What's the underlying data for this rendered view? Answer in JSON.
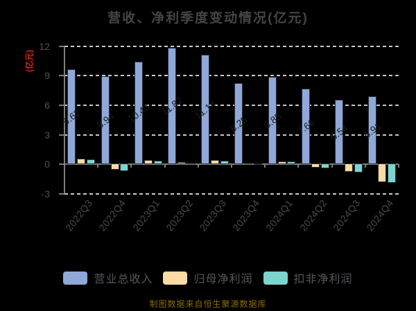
{
  "chart_data": {
    "type": "bar",
    "title": "营收、净利季度变动情况(亿元)",
    "y_axis_name": "(亿元)",
    "categories": [
      "2022Q3",
      "2022Q4",
      "2023Q1",
      "2023Q2",
      "2023Q3",
      "2023Q4",
      "2024Q1",
      "2024Q2",
      "2024Q3",
      "2024Q4"
    ],
    "series": [
      {
        "name": "营业总收入",
        "color": "#8FA8D8",
        "values": [
          9.62,
          8.94,
          10.43,
          11.82,
          11.14,
          8.25,
          8.85,
          7.66,
          6.54,
          6.91
        ],
        "labels": [
          "9.62",
          "8.94",
          "10.43",
          "11.82",
          "11.14",
          "8.25",
          "8.85",
          "7.66",
          "6.54",
          "6.91"
        ],
        "label_color": "#1b1b1b"
      },
      {
        "name": "归母净利润",
        "color": "#FBDBA4",
        "values": [
          0.55,
          -0.6,
          0.45,
          0.2,
          0.42,
          0.16,
          0.32,
          -0.37,
          -0.85,
          -1.85
        ]
      },
      {
        "name": "扣非净利润",
        "color": "#7CD4CD",
        "values": [
          0.48,
          -0.72,
          0.4,
          0.13,
          0.36,
          0.09,
          0.28,
          -0.44,
          -0.92,
          -1.95
        ]
      }
    ],
    "ylim": [
      -3,
      12
    ],
    "yticks": [
      12,
      9,
      6,
      3,
      0,
      -3
    ],
    "grid": "dashed horizontal",
    "legend_position": "bottom",
    "background_color": "#000000",
    "grid_color": "#cbcbcb",
    "axis_color": "#7e7e7e",
    "axis_text_color": "#4a4a4a",
    "title_color": "#454545",
    "y_axis_name_color": "#d02a20"
  },
  "footer": {
    "text": "制图数据来自恒生聚源数据库"
  }
}
